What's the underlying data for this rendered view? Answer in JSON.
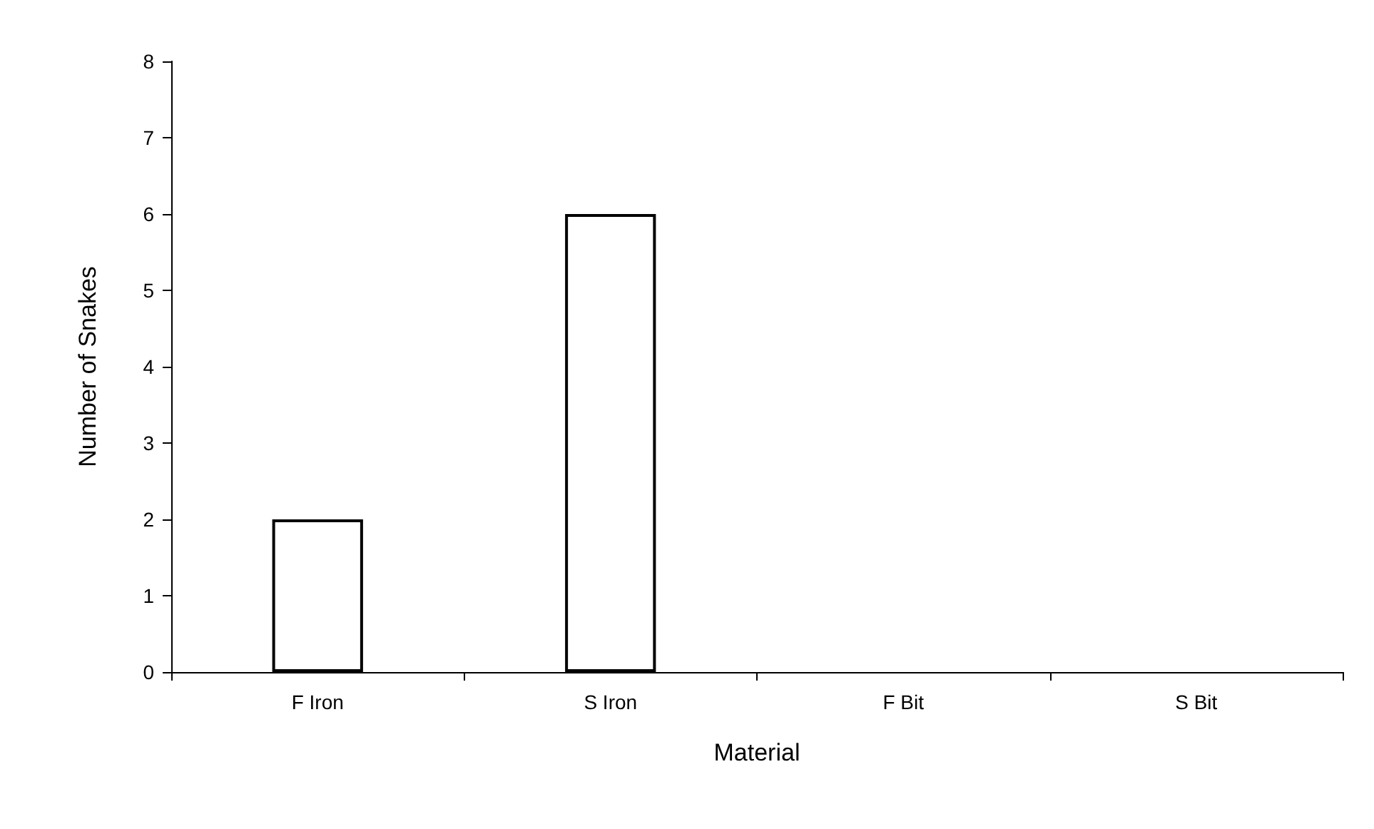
{
  "chart_data": {
    "type": "bar",
    "xlabel": "Material",
    "ylabel": "Number of Snakes",
    "categories": [
      "F Iron",
      "S Iron",
      "F Bit",
      "S Bit"
    ],
    "values": [
      2,
      6,
      0,
      0
    ],
    "color": "#ffffff",
    "ylim": [
      0,
      8
    ],
    "yticks": [
      0,
      1,
      2,
      3,
      4,
      5,
      6,
      7,
      8
    ],
    "grid": false
  }
}
